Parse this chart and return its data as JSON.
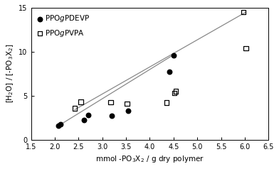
{
  "pdevp_x": [
    2.07,
    2.12,
    2.62,
    2.7,
    3.2,
    3.55,
    4.42,
    4.5
  ],
  "pdevp_y": [
    1.6,
    1.75,
    2.25,
    2.8,
    2.75,
    3.25,
    7.75,
    9.6
  ],
  "pvpa_x": [
    2.42,
    2.55,
    3.18,
    3.52,
    4.35,
    4.52,
    4.55,
    5.97,
    6.02
  ],
  "pvpa_y": [
    3.55,
    4.3,
    4.25,
    4.1,
    4.2,
    5.3,
    5.5,
    14.5,
    10.4
  ],
  "pdevp_line_x": [
    2.07,
    4.5
  ],
  "pdevp_line_y": [
    1.55,
    9.65
  ],
  "pvpa_line_x": [
    2.42,
    6.02
  ],
  "pvpa_line_y": [
    3.4,
    14.5
  ],
  "xlim": [
    1.5,
    6.5
  ],
  "ylim": [
    0,
    15
  ],
  "xlabel": "mmol -PO$_3$X$_2$ / g dry polymer",
  "ylabel": "[H$_2$O] / [-PO$_3$X$_2$]",
  "legend_label1": "PPO$g$PDEVP",
  "legend_label2": "PPO$g$PVPA",
  "xticks": [
    1.5,
    2.0,
    2.5,
    3.0,
    3.5,
    4.0,
    4.5,
    5.0,
    5.5,
    6.0,
    6.5
  ],
  "yticks": [
    0,
    5,
    10,
    15
  ],
  "line_color": "#888888",
  "pdevp_color": "#000000",
  "pvpa_color": "#000000",
  "background": "#ffffff"
}
